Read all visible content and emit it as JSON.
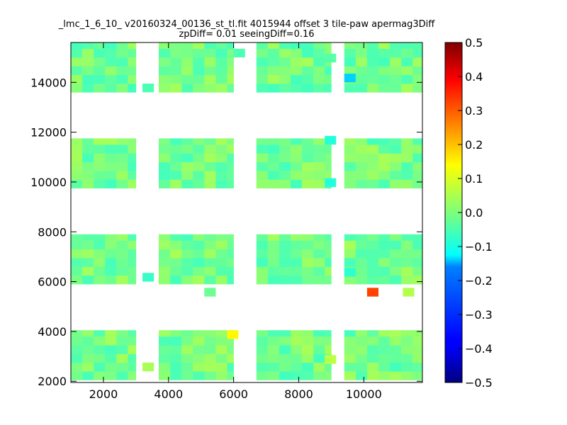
{
  "chart_data": {
    "type": "heatmap",
    "title_line1": "_lmc_1_6_10_ v20160324_00136_st_tl.fit 4015944 offset 3 tile-paw apermag3Diff",
    "title_line2": "zpDiff= 0.01 seeingDiff=0.16",
    "xlabel": "",
    "ylabel": "",
    "xlim": [
      1000,
      11800
    ],
    "ylim": [
      1950,
      15600
    ],
    "xticks": [
      2000,
      4000,
      6000,
      8000,
      10000
    ],
    "xtick_labels": [
      "2000",
      "4000",
      "6000",
      "8000",
      "10000"
    ],
    "yticks": [
      2000,
      4000,
      6000,
      8000,
      10000,
      12000,
      14000
    ],
    "ytick_labels": [
      "2000",
      "4000",
      "6000",
      "8000",
      "10000",
      "12000",
      "14000"
    ],
    "colorbar": {
      "colormap": "jet",
      "vmin": -0.5,
      "vmax": 0.5,
      "ticks": [
        0.5,
        0.4,
        0.3,
        0.2,
        0.1,
        0.0,
        -0.1,
        -0.2,
        -0.3,
        -0.4,
        -0.5
      ],
      "tick_labels": [
        "0.5",
        "0.4",
        "0.3",
        "0.2",
        "0.1",
        "0.0",
        "−0.1",
        "−0.2",
        "−0.3",
        "−0.4",
        "−0.5"
      ]
    },
    "cell_size": 350,
    "blocks": {
      "x_ranges": [
        [
          1000,
          3000
        ],
        [
          3700,
          6000
        ],
        [
          6700,
          9000
        ],
        [
          9400,
          11800
        ]
      ],
      "y_ranges": [
        [
          2050,
          4050
        ],
        [
          5900,
          7900
        ],
        [
          9750,
          11750
        ],
        [
          13600,
          15600
        ]
      ],
      "typical_value": -0.01
    },
    "highlighted_cells": [
      {
        "x": 10100,
        "y": 5400,
        "value": 0.31
      },
      {
        "x": 11200,
        "y": 5400,
        "value": 0.05
      },
      {
        "x": 5800,
        "y": 3700,
        "value": 0.13
      },
      {
        "x": 8800,
        "y": 2700,
        "value": 0.06
      },
      {
        "x": 9400,
        "y": 14000,
        "value": -0.17
      },
      {
        "x": 8800,
        "y": 11500,
        "value": -0.09
      },
      {
        "x": 8800,
        "y": 9800,
        "value": -0.09
      },
      {
        "x": 9400,
        "y": 6200,
        "value": -0.08
      },
      {
        "x": 3200,
        "y": 6000,
        "value": -0.07
      },
      {
        "x": 3200,
        "y": 13600,
        "value": -0.05
      },
      {
        "x": 3200,
        "y": 2400,
        "value": 0.04
      },
      {
        "x": 5100,
        "y": 5400,
        "value": -0.02
      },
      {
        "x": 6000,
        "y": 15000,
        "value": -0.05
      },
      {
        "x": 8800,
        "y": 14800,
        "value": -0.04
      }
    ]
  }
}
